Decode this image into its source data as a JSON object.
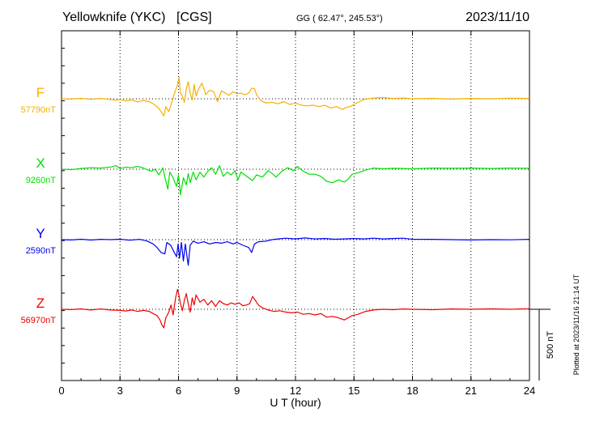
{
  "chart_data": {
    "type": "line",
    "station": "Yellowknife (YKC)",
    "network": "[CGS]",
    "coords_label": "GG ( 62.47°, 245.53°)",
    "date": "2023/11/10",
    "xlabel": "U T (hour)",
    "xlim": [
      0,
      24
    ],
    "x_ticks": [
      "0",
      "3",
      "6",
      "9",
      "12",
      "15",
      "18",
      "21",
      "24"
    ],
    "grid": true,
    "scale_label": "500 nT",
    "footer": "Plotted at 2023/11/16 21:14 UT",
    "series": [
      {
        "name": "F",
        "baseline_label": "57790nT",
        "color": "#f5b000",
        "points": [
          [
            0,
            0
          ],
          [
            0.5,
            -2
          ],
          [
            1,
            3
          ],
          [
            1.5,
            -4
          ],
          [
            2,
            2
          ],
          [
            2.5,
            -5
          ],
          [
            2.8,
            -10
          ],
          [
            3,
            -5
          ],
          [
            3.3,
            -14
          ],
          [
            3.6,
            -8
          ],
          [
            3.9,
            -22
          ],
          [
            4.2,
            -12
          ],
          [
            4.5,
            -20
          ],
          [
            4.7,
            -35
          ],
          [
            4.85,
            -50
          ],
          [
            5.0,
            -70
          ],
          [
            5.15,
            -100
          ],
          [
            5.25,
            -120
          ],
          [
            5.35,
            -55
          ],
          [
            5.5,
            -90
          ],
          [
            5.62,
            -40
          ],
          [
            5.75,
            20
          ],
          [
            5.85,
            60
          ],
          [
            5.95,
            100
          ],
          [
            6.02,
            150
          ],
          [
            6.1,
            40
          ],
          [
            6.2,
            20
          ],
          [
            6.3,
            -25
          ],
          [
            6.4,
            70
          ],
          [
            6.5,
            120
          ],
          [
            6.6,
            40
          ],
          [
            6.7,
            -10
          ],
          [
            6.8,
            100
          ],
          [
            6.9,
            20
          ],
          [
            7.0,
            60
          ],
          [
            7.2,
            110
          ],
          [
            7.4,
            30
          ],
          [
            7.6,
            60
          ],
          [
            7.8,
            50
          ],
          [
            8.0,
            -20
          ],
          [
            8.2,
            55
          ],
          [
            8.4,
            40
          ],
          [
            8.6,
            25
          ],
          [
            8.8,
            50
          ],
          [
            9.0,
            35
          ],
          [
            9.2,
            40
          ],
          [
            9.4,
            28
          ],
          [
            9.6,
            40
          ],
          [
            9.75,
            75
          ],
          [
            9.9,
            70
          ],
          [
            10.0,
            30
          ],
          [
            10.2,
            -10
          ],
          [
            10.5,
            -30
          ],
          [
            10.8,
            -25
          ],
          [
            11.1,
            -35
          ],
          [
            11.4,
            -20
          ],
          [
            11.7,
            -40
          ],
          [
            12,
            -30
          ],
          [
            12.3,
            -45
          ],
          [
            12.6,
            -50
          ],
          [
            12.9,
            -45
          ],
          [
            13.2,
            -55
          ],
          [
            13.5,
            -45
          ],
          [
            13.8,
            -65
          ],
          [
            14.1,
            -55
          ],
          [
            14.4,
            -75
          ],
          [
            14.6,
            -60
          ],
          [
            14.8,
            -55
          ],
          [
            15,
            -40
          ],
          [
            15.5,
            -5
          ],
          [
            16,
            5
          ],
          [
            16.5,
            8
          ],
          [
            17,
            2
          ],
          [
            17.5,
            5
          ],
          [
            18,
            0
          ],
          [
            19,
            3
          ],
          [
            20,
            -2
          ],
          [
            21,
            2
          ],
          [
            22,
            0
          ],
          [
            23,
            4
          ],
          [
            24,
            2
          ]
        ]
      },
      {
        "name": "X",
        "baseline_label": "9260nT",
        "color": "#00e000",
        "points": [
          [
            0,
            0
          ],
          [
            0.5,
            -3
          ],
          [
            1,
            5
          ],
          [
            1.5,
            10
          ],
          [
            2,
            8
          ],
          [
            2.5,
            15
          ],
          [
            2.8,
            25
          ],
          [
            3.0,
            5
          ],
          [
            3.3,
            15
          ],
          [
            3.6,
            10
          ],
          [
            3.9,
            20
          ],
          [
            4.2,
            8
          ],
          [
            4.6,
            -15
          ],
          [
            4.8,
            0
          ],
          [
            5.0,
            -40
          ],
          [
            5.2,
            10
          ],
          [
            5.3,
            -55
          ],
          [
            5.45,
            -140
          ],
          [
            5.55,
            -20
          ],
          [
            5.7,
            -55
          ],
          [
            5.9,
            -120
          ],
          [
            6.0,
            -40
          ],
          [
            6.1,
            -180
          ],
          [
            6.25,
            -60
          ],
          [
            6.4,
            -110
          ],
          [
            6.5,
            -30
          ],
          [
            6.6,
            -95
          ],
          [
            6.75,
            -20
          ],
          [
            6.9,
            -75
          ],
          [
            7.1,
            -20
          ],
          [
            7.3,
            -55
          ],
          [
            7.5,
            -15
          ],
          [
            7.7,
            10
          ],
          [
            7.9,
            -35
          ],
          [
            8.1,
            25
          ],
          [
            8.3,
            -50
          ],
          [
            8.5,
            -20
          ],
          [
            8.7,
            -40
          ],
          [
            8.9,
            -10
          ],
          [
            9.05,
            -75
          ],
          [
            9.2,
            -20
          ],
          [
            9.4,
            -40
          ],
          [
            9.6,
            -60
          ],
          [
            9.8,
            -80
          ],
          [
            10.0,
            -40
          ],
          [
            10.3,
            -55
          ],
          [
            10.6,
            -10
          ],
          [
            10.8,
            -30
          ],
          [
            11.0,
            -55
          ],
          [
            11.3,
            -15
          ],
          [
            11.6,
            10
          ],
          [
            11.9,
            -10
          ],
          [
            12.1,
            20
          ],
          [
            12.4,
            -15
          ],
          [
            12.7,
            -35
          ],
          [
            13.0,
            -35
          ],
          [
            13.3,
            -50
          ],
          [
            13.6,
            -85
          ],
          [
            13.9,
            -95
          ],
          [
            14.2,
            -75
          ],
          [
            14.5,
            -90
          ],
          [
            14.7,
            -70
          ],
          [
            14.9,
            -35
          ],
          [
            15.2,
            -25
          ],
          [
            15.6,
            -5
          ],
          [
            16,
            8
          ],
          [
            16.5,
            3
          ],
          [
            17,
            6
          ],
          [
            17.5,
            5
          ],
          [
            18,
            3
          ],
          [
            19,
            8
          ],
          [
            20,
            6
          ],
          [
            21,
            8
          ],
          [
            22,
            5
          ],
          [
            23,
            8
          ],
          [
            24,
            6
          ]
        ]
      },
      {
        "name": "Y",
        "baseline_label": "2590nT",
        "color": "#0000ee",
        "points": [
          [
            0,
            0
          ],
          [
            0.5,
            -2
          ],
          [
            1,
            3
          ],
          [
            1.5,
            -3
          ],
          [
            2,
            2
          ],
          [
            2.5,
            0
          ],
          [
            3,
            3
          ],
          [
            3.5,
            -4
          ],
          [
            4,
            2
          ],
          [
            4.4,
            -10
          ],
          [
            4.7,
            -30
          ],
          [
            4.9,
            -55
          ],
          [
            5.1,
            -90
          ],
          [
            5.3,
            -100
          ],
          [
            5.4,
            -20
          ],
          [
            5.6,
            -40
          ],
          [
            5.8,
            -95
          ],
          [
            5.9,
            -120
          ],
          [
            5.98,
            -30
          ],
          [
            6.05,
            -130
          ],
          [
            6.15,
            -20
          ],
          [
            6.25,
            -150
          ],
          [
            6.35,
            -30
          ],
          [
            6.5,
            -180
          ],
          [
            6.6,
            -40
          ],
          [
            6.75,
            -10
          ],
          [
            7.0,
            -25
          ],
          [
            7.3,
            -15
          ],
          [
            7.6,
            -30
          ],
          [
            7.9,
            -20
          ],
          [
            8.2,
            -25
          ],
          [
            8.5,
            -15
          ],
          [
            8.8,
            -30
          ],
          [
            9.0,
            -20
          ],
          [
            9.3,
            -40
          ],
          [
            9.6,
            -55
          ],
          [
            9.75,
            -90
          ],
          [
            9.9,
            -30
          ],
          [
            10.1,
            -15
          ],
          [
            10.5,
            -10
          ],
          [
            10.8,
            0
          ],
          [
            11.1,
            5
          ],
          [
            11.5,
            10
          ],
          [
            12,
            5
          ],
          [
            12.5,
            12
          ],
          [
            13,
            5
          ],
          [
            13.5,
            8
          ],
          [
            14,
            3
          ],
          [
            14.5,
            5
          ],
          [
            15,
            8
          ],
          [
            15.5,
            5
          ],
          [
            16,
            10
          ],
          [
            16.5,
            5
          ],
          [
            17,
            8
          ],
          [
            17.5,
            10
          ],
          [
            18,
            3
          ],
          [
            19,
            2
          ],
          [
            20,
            0
          ],
          [
            21,
            -2
          ],
          [
            22,
            0
          ],
          [
            23,
            -1
          ],
          [
            24,
            2
          ]
        ]
      },
      {
        "name": "Z",
        "baseline_label": "56970nT",
        "color": "#ee0000",
        "points": [
          [
            0,
            0
          ],
          [
            0.5,
            -2
          ],
          [
            1,
            3
          ],
          [
            1.5,
            -5
          ],
          [
            2,
            2
          ],
          [
            2.5,
            -5
          ],
          [
            3,
            -8
          ],
          [
            3.3,
            -12
          ],
          [
            3.6,
            -5
          ],
          [
            3.9,
            -15
          ],
          [
            4.2,
            -8
          ],
          [
            4.5,
            -15
          ],
          [
            4.7,
            -30
          ],
          [
            4.9,
            -45
          ],
          [
            5.05,
            -75
          ],
          [
            5.15,
            -110
          ],
          [
            5.25,
            -130
          ],
          [
            5.35,
            -60
          ],
          [
            5.5,
            -20
          ],
          [
            5.62,
            30
          ],
          [
            5.72,
            -40
          ],
          [
            5.85,
            80
          ],
          [
            5.95,
            140
          ],
          [
            6.02,
            100
          ],
          [
            6.1,
            40
          ],
          [
            6.2,
            -10
          ],
          [
            6.3,
            60
          ],
          [
            6.4,
            110
          ],
          [
            6.5,
            40
          ],
          [
            6.6,
            -20
          ],
          [
            6.7,
            80
          ],
          [
            6.8,
            30
          ],
          [
            6.9,
            100
          ],
          [
            7.1,
            50
          ],
          [
            7.3,
            70
          ],
          [
            7.5,
            30
          ],
          [
            7.7,
            60
          ],
          [
            7.9,
            20
          ],
          [
            8.1,
            60
          ],
          [
            8.3,
            40
          ],
          [
            8.5,
            30
          ],
          [
            8.7,
            45
          ],
          [
            8.9,
            35
          ],
          [
            9.1,
            45
          ],
          [
            9.3,
            25
          ],
          [
            9.5,
            30
          ],
          [
            9.65,
            40
          ],
          [
            9.8,
            90
          ],
          [
            9.95,
            60
          ],
          [
            10.1,
            30
          ],
          [
            10.3,
            10
          ],
          [
            10.6,
            -5
          ],
          [
            10.9,
            -15
          ],
          [
            11.2,
            -10
          ],
          [
            11.5,
            -20
          ],
          [
            11.8,
            -25
          ],
          [
            12.1,
            -20
          ],
          [
            12.4,
            -35
          ],
          [
            12.7,
            -30
          ],
          [
            13,
            -40
          ],
          [
            13.3,
            -30
          ],
          [
            13.6,
            -55
          ],
          [
            13.9,
            -50
          ],
          [
            14.2,
            -60
          ],
          [
            14.5,
            -75
          ],
          [
            14.7,
            -60
          ],
          [
            14.9,
            -45
          ],
          [
            15.2,
            -35
          ],
          [
            15.6,
            -15
          ],
          [
            16,
            -5
          ],
          [
            16.5,
            0
          ],
          [
            17,
            -3
          ],
          [
            17.5,
            2
          ],
          [
            18,
            0
          ],
          [
            19,
            -3
          ],
          [
            20,
            2
          ],
          [
            21,
            0
          ],
          [
            22,
            3
          ],
          [
            23,
            0
          ],
          [
            24,
            4
          ]
        ]
      }
    ]
  }
}
